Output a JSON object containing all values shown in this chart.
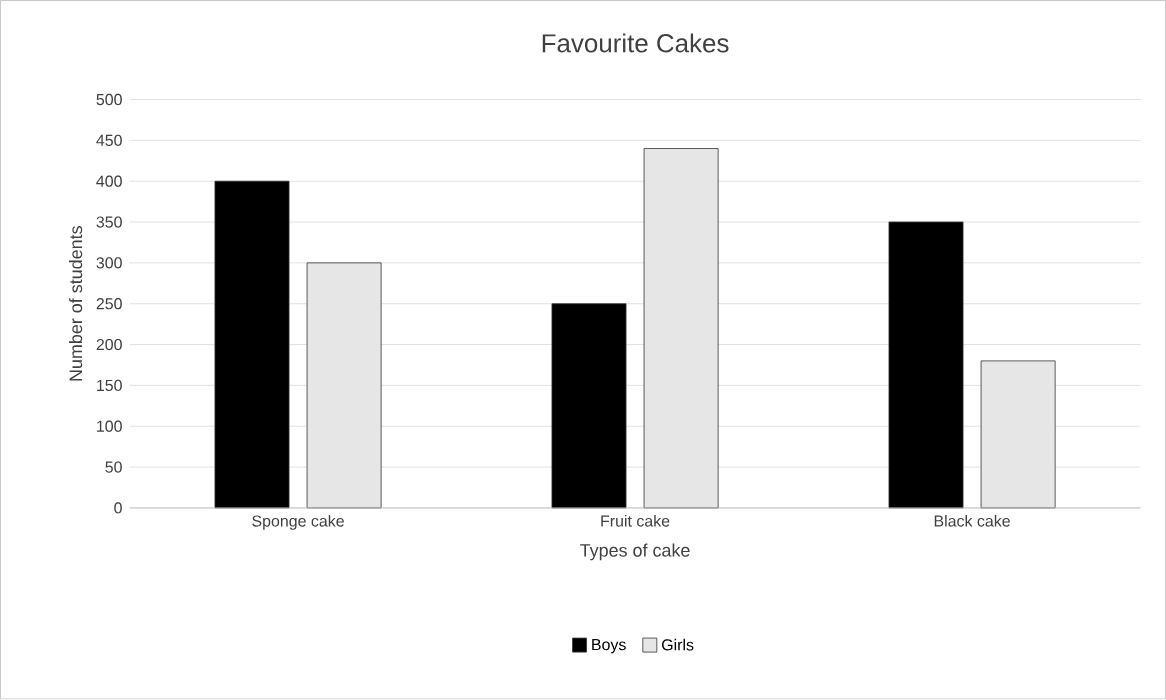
{
  "chart_data": {
    "type": "bar",
    "title": "Favourite Cakes",
    "xlabel": "Types of cake",
    "ylabel": "Number of students",
    "categories": [
      "Sponge cake",
      "Fruit cake",
      "Black cake"
    ],
    "series": [
      {
        "name": "Boys",
        "color": "#000000",
        "values": [
          400,
          250,
          350
        ]
      },
      {
        "name": "Girls",
        "color": "#e7e6e6",
        "values": [
          300,
          440,
          180
        ]
      }
    ],
    "ylim": [
      0,
      500
    ],
    "yticks": [
      0,
      50,
      100,
      150,
      200,
      250,
      300,
      350,
      400,
      450,
      500
    ],
    "grid": "y",
    "legend": "bottom"
  }
}
